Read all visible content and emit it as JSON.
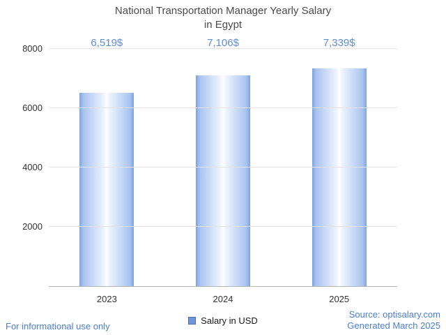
{
  "chart_data": {
    "type": "bar",
    "title_line1": "National Transportation Manager Yearly Salary",
    "title_line2": "in Egypt",
    "categories": [
      "2023",
      "2024",
      "2025"
    ],
    "values": [
      6519,
      7106,
      7339
    ],
    "value_labels": [
      "6,519$",
      "7,106$",
      "7,339$"
    ],
    "legend": "Salary in USD",
    "xlabel": "",
    "ylabel": "",
    "ylim": [
      0,
      8000
    ],
    "yticks": [
      2000,
      4000,
      6000,
      8000
    ],
    "grid": true,
    "legend_position": "bottom-center",
    "colors": {
      "bar_edge": "#7da3e4",
      "bar_center": "#ffffff",
      "value_label": "#5b8dd6",
      "legend_swatch": "#6f96d6",
      "gridline": "#e3e3e3",
      "axis_line": "#b5b5b5",
      "title": "#4a4a4a",
      "tick": "#333333",
      "footer": "#4a7ed6"
    }
  },
  "footer": {
    "disclaimer": "For informational use only",
    "source": "Source: optisalary.com",
    "generated": "Generated March 2025"
  }
}
